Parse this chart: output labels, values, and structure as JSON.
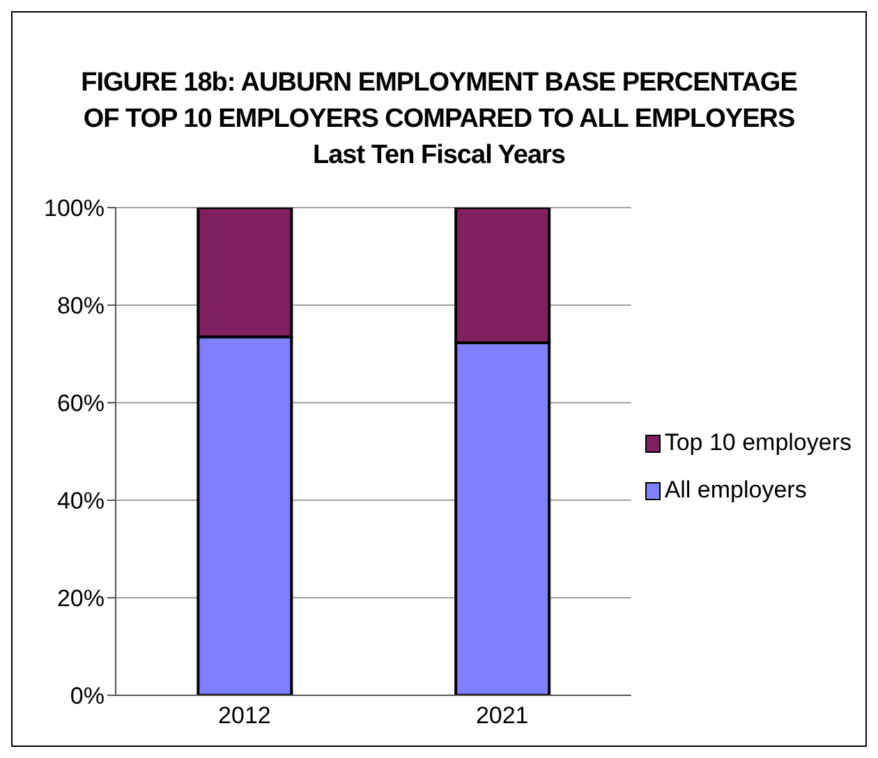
{
  "chart_data": {
    "type": "bar",
    "title": "FIGURE 18b: AUBURN EMPLOYMENT BASE PERCENTAGE\nOF TOP 10 EMPLOYERS COMPARED TO ALL EMPLOYERS",
    "subtitle": "Last Ten Fiscal Years",
    "categories": [
      "2012",
      "2021"
    ],
    "stacked": true,
    "series": [
      {
        "name": "All employers",
        "color": "#8080ff",
        "values": [
          73.5,
          72.3
        ]
      },
      {
        "name": "Top 10 employers",
        "color": "#7f2060",
        "values": [
          26.5,
          27.7
        ]
      }
    ],
    "ylim": [
      0,
      100
    ],
    "yticks": [
      {
        "value": 0,
        "label": "0%"
      },
      {
        "value": 20,
        "label": "20%"
      },
      {
        "value": 40,
        "label": "40%"
      },
      {
        "value": 60,
        "label": "60%"
      },
      {
        "value": 80,
        "label": "80%"
      },
      {
        "value": 100,
        "label": "100%"
      }
    ],
    "grid": "y",
    "legend": "right"
  }
}
